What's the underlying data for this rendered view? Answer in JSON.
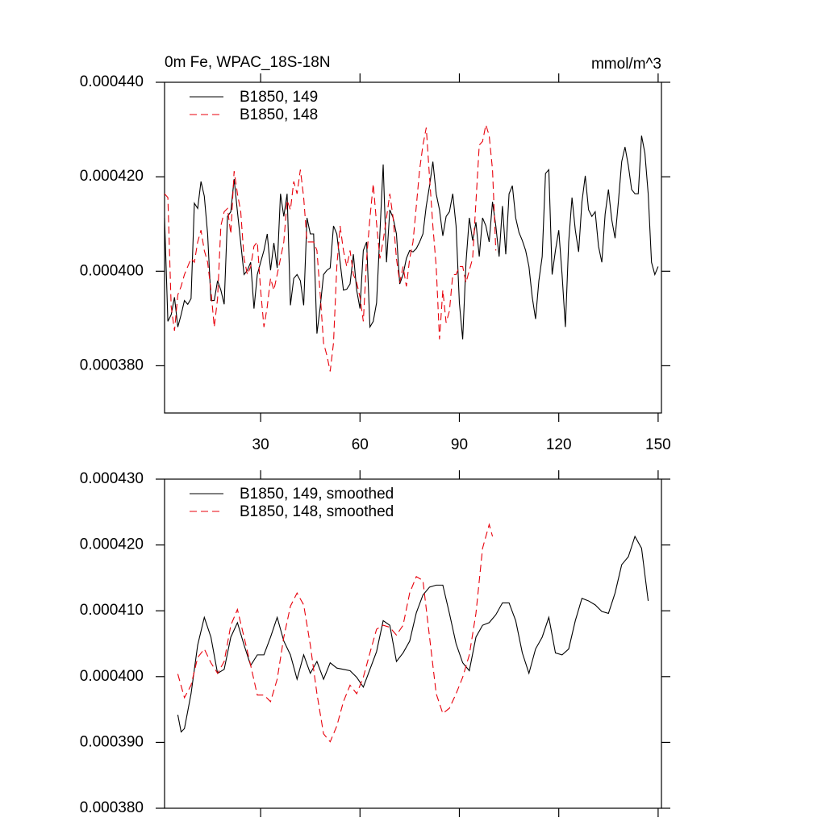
{
  "chart_data": [
    {
      "type": "line",
      "title": "0m Fe, WPAC_18S-18N",
      "units": "mmol/m^3",
      "legend": "top-left",
      "xlim": [
        1,
        151
      ],
      "xticks": [
        30,
        60,
        90,
        120,
        150
      ],
      "xtick_labels": true,
      "ylim": [
        0.00037,
        0.00044
      ],
      "yticks": [
        {
          "value": 0.00038,
          "label": "0.000380"
        },
        {
          "value": 0.0004,
          "label": "0.000400"
        },
        {
          "value": 0.00042,
          "label": "0.000420"
        },
        {
          "value": 0.00044,
          "label": "0.000440"
        }
      ],
      "series": [
        {
          "name": "B1850, 149",
          "color": "#000000",
          "dashed": false,
          "x": [
            1,
            2,
            3,
            4,
            5,
            6,
            7,
            8,
            9,
            10,
            11,
            12,
            13,
            14,
            15,
            16,
            17,
            18,
            19,
            20,
            21,
            22,
            23,
            24,
            25,
            26,
            27,
            28,
            29,
            30,
            31,
            32,
            33,
            34,
            35,
            36,
            37,
            38,
            39,
            40,
            41,
            42,
            43,
            44,
            45,
            46,
            47,
            48,
            49,
            50,
            51,
            52,
            53,
            54,
            55,
            56,
            57,
            58,
            59,
            60,
            61,
            62,
            63,
            64,
            65,
            66,
            67,
            68,
            69,
            70,
            71,
            72,
            73,
            74,
            75,
            76,
            77,
            78,
            79,
            80,
            81,
            82,
            83,
            84,
            85,
            86,
            87,
            88,
            89,
            90,
            91,
            92,
            93,
            94,
            95,
            96,
            97,
            98,
            99,
            100,
            101,
            102,
            103,
            104,
            105,
            106,
            107,
            108,
            109,
            110,
            111,
            112,
            113,
            114,
            115,
            116,
            117,
            118,
            119,
            120,
            121,
            122,
            123,
            124,
            125,
            126,
            127,
            128,
            129,
            130,
            131,
            132,
            133,
            134,
            135,
            136,
            137,
            138,
            139,
            140,
            141,
            142,
            143,
            144,
            145,
            146,
            147,
            148,
            149,
            150
          ],
          "values": [
            0.0004113,
            0.0003894,
            0.0003908,
            0.0003945,
            0.0003882,
            0.0003908,
            0.0003938,
            0.000393,
            0.0003942,
            0.0004144,
            0.0004133,
            0.000419,
            0.0004159,
            0.0004079,
            0.0003938,
            0.0003938,
            0.000398,
            0.000396,
            0.000393,
            0.0004116,
            0.0004126,
            0.0004195,
            0.0004126,
            0.000406,
            0.0003993,
            0.0004002,
            0.0004019,
            0.0003921,
            0.0003993,
            0.0004019,
            0.0004044,
            0.0004079,
            0.0004002,
            0.000406,
            0.0004007,
            0.0004164,
            0.0004116,
            0.0004164,
            0.0003928,
            0.0003985,
            0.0003993,
            0.000398,
            0.0003928,
            0.0004113,
            0.0004079,
            0.0004079,
            0.0003868,
            0.0003925,
            0.0003993,
            0.0004002,
            0.0004007,
            0.0004096,
            0.0004079,
            0.0004019,
            0.000396,
            0.0003962,
            0.0003973,
            0.0004036,
            0.000396,
            0.0003921,
            0.0004044,
            0.0004062,
            0.0003882,
            0.0003894,
            0.0003933,
            0.0004079,
            0.0004226,
            0.0004019,
            0.000413,
            0.0004113,
            0.0004079,
            0.0003973,
            0.0003993,
            0.0004027,
            0.0004044,
            0.0004041,
            0.0004048,
            0.0004062,
            0.0004079,
            0.0004138,
            0.0004181,
            0.0004232,
            0.0004164,
            0.000413,
            0.0004075,
            0.0004116,
            0.0004126,
            0.0004164,
            0.0004096,
            0.0003933,
            0.0003856,
            0.0004019,
            0.0004113,
            0.0004065,
            0.0004104,
            0.0004031,
            0.0004113,
            0.0004096,
            0.0004062,
            0.0004147,
            0.0004096,
            0.0004031,
            0.0004138,
            0.0004036,
            0.0004164,
            0.0004181,
            0.0004113,
            0.0004082,
            0.0004065,
            0.0004044,
            0.000401,
            0.0003945,
            0.0003899,
            0.000398,
            0.0004031,
            0.0004207,
            0.0004215,
            0.0003993,
            0.0004044,
            0.0004087,
            0.0003993,
            0.0003882,
            0.0004062,
            0.0004156,
            0.0004087,
            0.0004041,
            0.0004147,
            0.0004202,
            0.000413,
            0.0004116,
            0.0004126,
            0.0004053,
            0.0004019,
            0.0004121,
            0.0004173,
            0.0004109,
            0.000407,
            0.0004147,
            0.0004232,
            0.0004263,
            0.0004224,
            0.0004173,
            0.0004164,
            0.0004164,
            0.0004287,
            0.000425,
            0.0004164,
            0.0004019,
            0.0003993,
            0.000401
          ]
        },
        {
          "name": "B1850, 148",
          "color": "#e8000b",
          "dashed": true,
          "x": [
            1,
            2,
            3,
            4,
            5,
            6,
            7,
            8,
            9,
            10,
            11,
            12,
            13,
            14,
            15,
            16,
            17,
            18,
            19,
            20,
            21,
            22,
            23,
            24,
            25,
            26,
            27,
            28,
            29,
            30,
            31,
            32,
            33,
            34,
            35,
            36,
            37,
            38,
            39,
            40,
            41,
            42,
            43,
            44,
            45,
            46,
            47,
            48,
            49,
            50,
            51,
            52,
            53,
            54,
            55,
            56,
            57,
            58,
            59,
            60,
            61,
            62,
            63,
            64,
            65,
            66,
            67,
            68,
            69,
            70,
            71,
            72,
            73,
            74,
            75,
            76,
            77,
            78,
            79,
            80,
            81,
            82,
            83,
            84,
            85,
            86,
            87,
            88,
            89,
            90,
            91,
            92,
            93,
            94,
            95,
            96,
            97,
            98,
            99,
            100,
            101
          ],
          "values": [
            0.0004164,
            0.0004156,
            0.0003925,
            0.0003874,
            0.000395,
            0.0003968,
            0.0003993,
            0.000401,
            0.0004027,
            0.0004019,
            0.0004062,
            0.0004087,
            0.0004044,
            0.0004019,
            0.000396,
            0.0003882,
            0.0003942,
            0.0004096,
            0.0004126,
            0.0004133,
            0.0004079,
            0.0004212,
            0.0004164,
            0.0004126,
            0.0004027,
            0.0003993,
            0.000401,
            0.0004053,
            0.0004062,
            0.000396,
            0.0003882,
            0.0003925,
            0.0003985,
            0.000396,
            0.0003993,
            0.0004027,
            0.0004062,
            0.000415,
            0.000413,
            0.000419,
            0.0004164,
            0.0004215,
            0.0004156,
            0.0004062,
            0.0004062,
            0.0004062,
            0.0004044,
            0.000395,
            0.0003848,
            0.0003822,
            0.0003788,
            0.0003848,
            0.000401,
            0.0004096,
            0.0004044,
            0.000401,
            0.0004044,
            0.0003993,
            0.0003976,
            0.0003945,
            0.0003894,
            0.0004027,
            0.0004113,
            0.0004185,
            0.0004101,
            0.0004027,
            0.0004065,
            0.0004113,
            0.0004164,
            0.0004113,
            0.0004027,
            0.0003976,
            0.000401,
            0.0003968,
            0.0004027,
            0.0004062,
            0.0004138,
            0.0004215,
            0.0004267,
            0.0004304,
            0.0004198,
            0.0004096,
            0.000401,
            0.0003856,
            0.000396,
            0.0003891,
            0.0003916,
            0.0003993,
            0.0003993,
            0.000401,
            0.000401,
            0.0003976,
            0.0004002,
            0.0004027,
            0.0004147,
            0.0004267,
            0.0004275,
            0.000431,
            0.0004287,
            0.0004215,
            0.0004044
          ]
        }
      ]
    },
    {
      "type": "line",
      "legend": "top-left",
      "xlim": [
        1,
        151
      ],
      "xticks": [
        30,
        60,
        90,
        120,
        150
      ],
      "xtick_labels": false,
      "ylim": [
        0.00038,
        0.00043
      ],
      "yticks": [
        {
          "value": 0.00038,
          "label": "0.000380"
        },
        {
          "value": 0.00039,
          "label": "0.000390"
        },
        {
          "value": 0.0004,
          "label": "0.000400"
        },
        {
          "value": 0.00041,
          "label": "0.000410"
        },
        {
          "value": 0.00042,
          "label": "0.000420"
        },
        {
          "value": 0.00043,
          "label": "0.000430"
        }
      ],
      "series": [
        {
          "name": "B1850, 149, smoothed",
          "color": "#000000",
          "dashed": false,
          "x": [
            5,
            6,
            7,
            9,
            11,
            13,
            15,
            17,
            19,
            21,
            23,
            25,
            27,
            29,
            31,
            33,
            35,
            37,
            39,
            41,
            43,
            45,
            47,
            49,
            51,
            53,
            55,
            57,
            59,
            61,
            63,
            65,
            67,
            69,
            71,
            73,
            75,
            77,
            79,
            81,
            83,
            85,
            87,
            89,
            91,
            93,
            95,
            97,
            99,
            101,
            103,
            105,
            107,
            109,
            111,
            113,
            115,
            117,
            119,
            121,
            123,
            125,
            127,
            129,
            131,
            133,
            135,
            137,
            139,
            141,
            143,
            145,
            147
          ],
          "values": [
            0.0003942,
            0.0003916,
            0.0003921,
            0.0003974,
            0.0004048,
            0.000409,
            0.000406,
            0.0004005,
            0.0004011,
            0.000406,
            0.0004082,
            0.0004048,
            0.0004017,
            0.0004033,
            0.0004033,
            0.000406,
            0.000409,
            0.0004054,
            0.0004033,
            0.0003996,
            0.0004033,
            0.0004005,
            0.0004023,
            0.0003996,
            0.0004021,
            0.0004013,
            0.0004011,
            0.0004009,
            0.0003999,
            0.0003984,
            0.0004011,
            0.0004038,
            0.0004085,
            0.0004078,
            0.0004023,
            0.0004036,
            0.0004054,
            0.0004097,
            0.0004124,
            0.0004136,
            0.0004139,
            0.0004139,
            0.0004096,
            0.000405,
            0.0004021,
            0.0004009,
            0.000406,
            0.0004078,
            0.0004082,
            0.0004094,
            0.0004112,
            0.0004112,
            0.0004085,
            0.0004036,
            0.0004005,
            0.0004042,
            0.000406,
            0.000409,
            0.0004036,
            0.0004033,
            0.0004042,
            0.0004085,
            0.0004119,
            0.0004115,
            0.0004109,
            0.0004099,
            0.0004096,
            0.0004127,
            0.000417,
            0.0004182,
            0.0004213,
            0.0004195,
            0.0004115
          ]
        },
        {
          "name": "B1850, 148, smoothed",
          "color": "#e8000b",
          "dashed": true,
          "x": [
            5,
            7,
            9,
            11,
            13,
            15,
            17,
            19,
            21,
            23,
            25,
            27,
            29,
            31,
            33,
            35,
            37,
            39,
            41,
            43,
            45,
            47,
            49,
            51,
            53,
            55,
            57,
            59,
            61,
            63,
            65,
            67,
            69,
            71,
            73,
            75,
            77,
            79,
            81,
            83,
            85,
            87,
            89,
            91,
            93,
            95,
            97,
            99,
            100
          ],
          "values": [
            0.0004004,
            0.0003968,
            0.0003987,
            0.0004029,
            0.0004042,
            0.0004021,
            0.0004005,
            0.0004023,
            0.0004078,
            0.0004102,
            0.000406,
            0.0004017,
            0.0003972,
            0.0003972,
            0.0003962,
            0.0003996,
            0.000406,
            0.0004107,
            0.0004127,
            0.0004109,
            0.0004048,
            0.0003974,
            0.0003913,
            0.0003901,
            0.0003925,
            0.0003962,
            0.0003987,
            0.0003974,
            0.0003999,
            0.0004036,
            0.0004072,
            0.0004078,
            0.0004075,
            0.0004063,
            0.0004078,
            0.0004127,
            0.0004152,
            0.0004146,
            0.000406,
            0.0003974,
            0.0003944,
            0.0003952,
            0.0003974,
            0.0003999,
            0.0004033,
            0.0004096,
            0.0004195,
            0.0004231,
            0.0004213
          ]
        }
      ]
    }
  ]
}
